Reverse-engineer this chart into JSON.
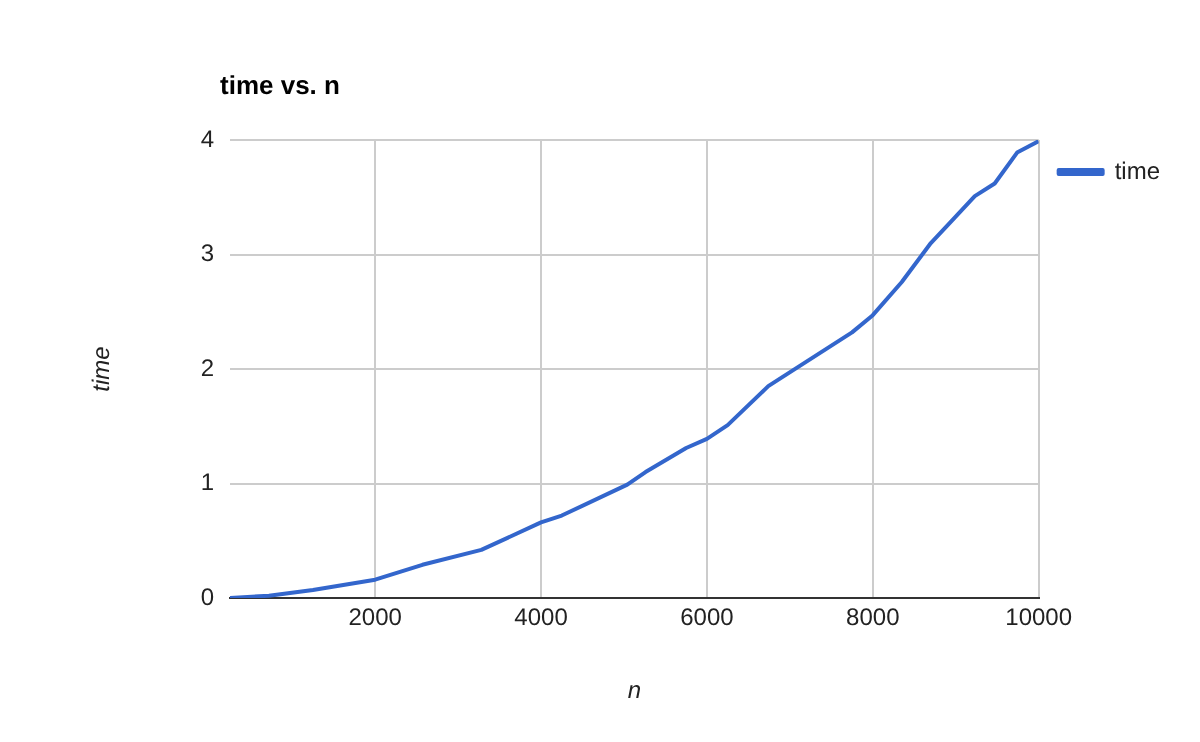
{
  "chart_data": {
    "type": "line",
    "title": "time vs. n",
    "xlabel": "n",
    "ylabel": "time",
    "x": [
      250,
      720,
      1250,
      2000,
      2570,
      3280,
      4000,
      4250,
      5040,
      5260,
      5750,
      6000,
      6250,
      6740,
      7750,
      8000,
      8350,
      8700,
      8960,
      9230,
      9470,
      9740,
      10000
    ],
    "series": [
      {
        "name": "time",
        "color": "#3366cc",
        "values": [
          0,
          0.02,
          0.07,
          0.16,
          0.29,
          0.42,
          0.66,
          0.72,
          0.99,
          1.1,
          1.31,
          1.39,
          1.51,
          1.85,
          2.32,
          2.47,
          2.76,
          3.1,
          3.3,
          3.51,
          3.62,
          3.89,
          3.99
        ]
      }
    ],
    "xlim": [
      250,
      10000
    ],
    "xticks": [
      2000,
      4000,
      6000,
      8000,
      10000
    ],
    "ylim": [
      0,
      4
    ],
    "yticks": [
      0,
      1,
      2,
      3,
      4
    ],
    "grid": true,
    "legend": "top right",
    "line_style": "solid",
    "marker": "none"
  }
}
